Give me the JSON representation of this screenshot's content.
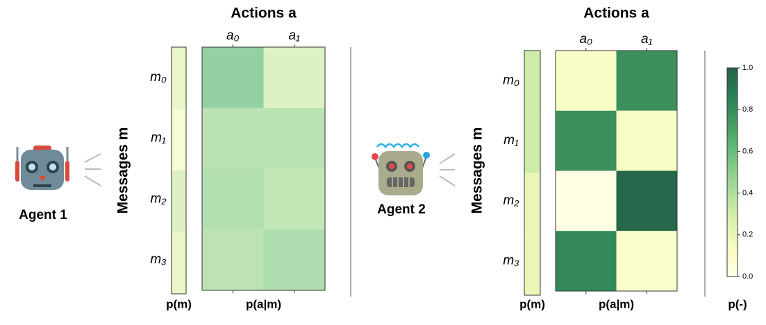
{
  "agents": [
    "Agent 1",
    "Agent 2"
  ],
  "chart_data": [
    {
      "type": "heatmap",
      "title": "Actions a",
      "ylabel": "Messages m",
      "xlabel": "p(a|m)",
      "x_categories": [
        "a₀",
        "a₁"
      ],
      "y_categories": [
        "m₀",
        "m₁",
        "m₂",
        "m₃"
      ],
      "values": [
        [
          0.6,
          0.3
        ],
        [
          0.45,
          0.45
        ],
        [
          0.48,
          0.42
        ],
        [
          0.44,
          0.5
        ]
      ],
      "marginal": {
        "label": "p(m)",
        "values": [
          0.25,
          0.15,
          0.3,
          0.25
        ]
      },
      "colormap": "YlGn",
      "zlim": [
        0,
        1
      ],
      "alpha": 0.6
    },
    {
      "type": "heatmap",
      "title": "Actions a",
      "ylabel": "Messages m",
      "xlabel": "p(a|m)",
      "x_categories": [
        "a₀",
        "a₁"
      ],
      "y_categories": [
        "m₀",
        "m₁",
        "m₂",
        "m₃"
      ],
      "values": [
        [
          0.12,
          0.78
        ],
        [
          0.78,
          0.12
        ],
        [
          0.02,
          0.97
        ],
        [
          0.82,
          0.1
        ]
      ],
      "marginal": {
        "label": "p(m)",
        "values": [
          0.3,
          0.3,
          0.2,
          0.2
        ]
      },
      "colormap": "YlGn",
      "zlim": [
        0,
        1
      ],
      "alpha": 0.85,
      "colorbar": {
        "label": "p(-)",
        "ticks": [
          {
            "value": 0,
            "label": "0.0"
          },
          0.2,
          0.4,
          0.6,
          0.8,
          {
            "value": 1,
            "label": "1.0"
          }
        ]
      }
    }
  ]
}
